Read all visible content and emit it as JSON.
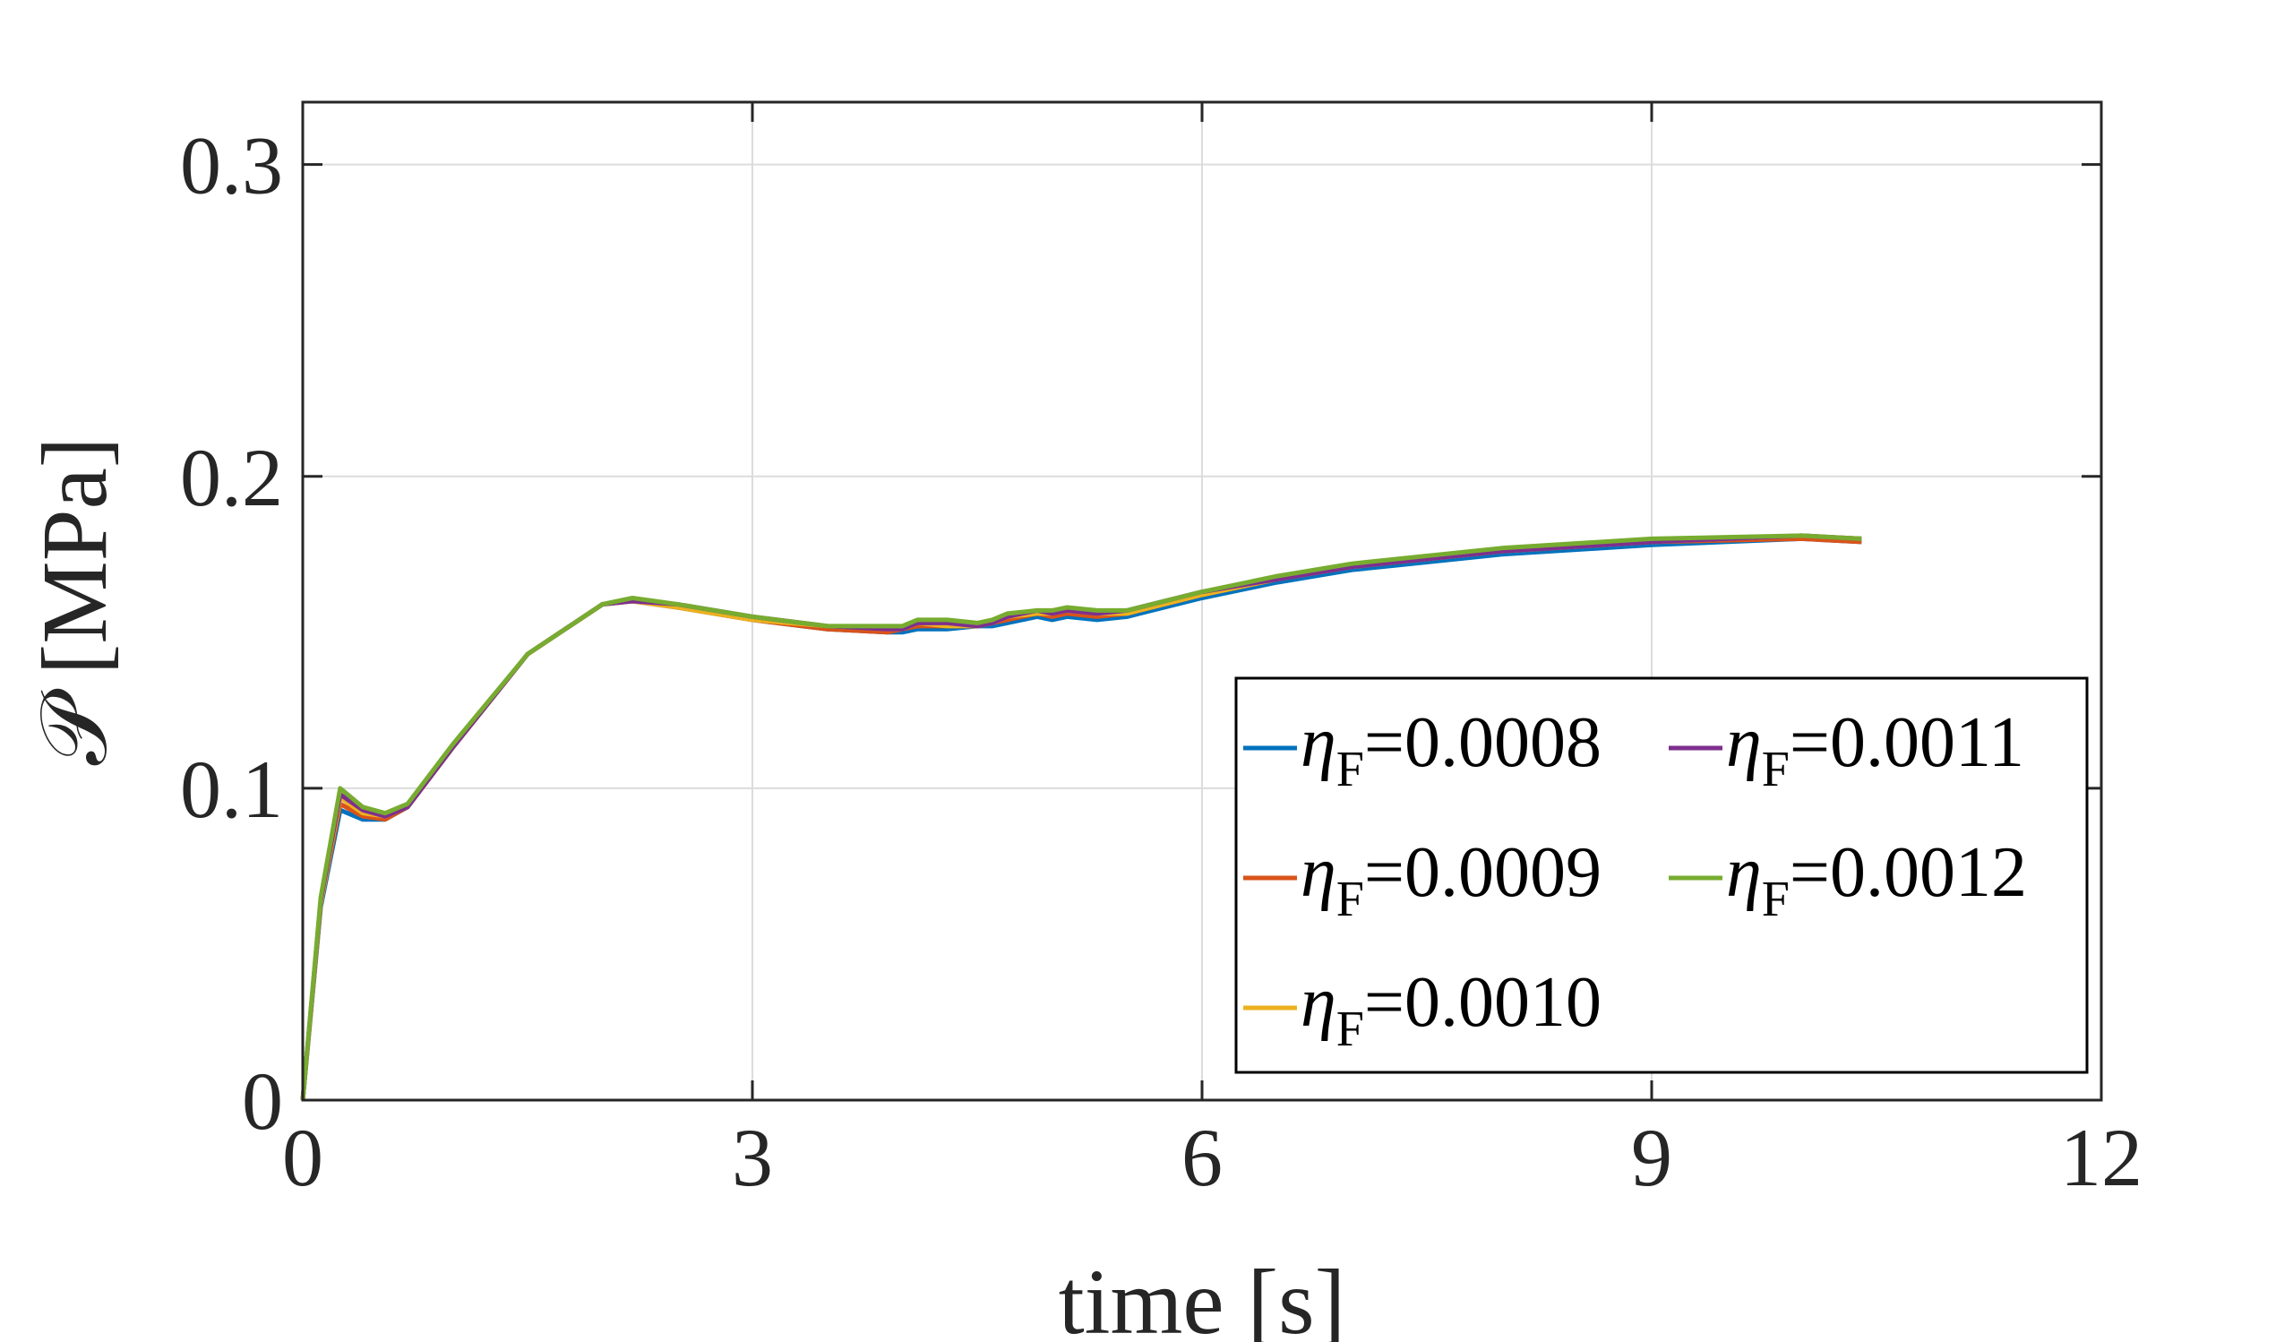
{
  "chart_data": {
    "type": "line",
    "title": "",
    "xlabel": "time [s]",
    "ylabel": "𝒫 [MPa]",
    "xlim": [
      0,
      12
    ],
    "ylim": [
      0,
      0.32
    ],
    "xticks": [
      0,
      3,
      6,
      9,
      12
    ],
    "xtick_labels": [
      "0",
      "3",
      "6",
      "9",
      "12"
    ],
    "yticks": [
      0,
      0.1,
      0.2,
      0.3
    ],
    "ytick_labels": [
      "0",
      "0.1",
      "0.2",
      "0.3"
    ],
    "grid": true,
    "legend_position": "bottom-right",
    "legend_symbol": "η",
    "legend_subscript": "F",
    "series": [
      {
        "name": "=0.0008",
        "color": "#0072BD",
        "x": [
          0,
          0.12,
          0.25,
          0.4,
          0.55,
          0.7,
          1.0,
          1.5,
          2.0,
          2.2,
          2.5,
          3.0,
          3.5,
          3.9,
          4.0,
          4.1,
          4.3,
          4.5,
          4.6,
          4.7,
          4.9,
          5.0,
          5.1,
          5.3,
          5.5,
          6.0,
          6.5,
          7.0,
          8.0,
          9.0,
          10.0,
          10.4
        ],
        "y": [
          0,
          0.062,
          0.093,
          0.09,
          0.09,
          0.094,
          0.113,
          0.143,
          0.159,
          0.16,
          0.158,
          0.154,
          0.151,
          0.15,
          0.15,
          0.151,
          0.151,
          0.152,
          0.152,
          0.153,
          0.155,
          0.154,
          0.155,
          0.154,
          0.155,
          0.161,
          0.166,
          0.17,
          0.175,
          0.178,
          0.18,
          0.179
        ]
      },
      {
        "name": "=0.0009",
        "color": "#D95319",
        "x": [
          0,
          0.12,
          0.25,
          0.4,
          0.55,
          0.7,
          1.0,
          1.5,
          2.0,
          2.2,
          2.5,
          3.0,
          3.5,
          3.9,
          4.0,
          4.1,
          4.3,
          4.5,
          4.6,
          4.7,
          4.9,
          5.0,
          5.1,
          5.3,
          5.5,
          6.0,
          6.5,
          7.0,
          8.0,
          9.0,
          10.0,
          10.4
        ],
        "y": [
          0,
          0.063,
          0.095,
          0.091,
          0.09,
          0.094,
          0.113,
          0.143,
          0.159,
          0.16,
          0.158,
          0.154,
          0.151,
          0.15,
          0.151,
          0.152,
          0.152,
          0.152,
          0.153,
          0.154,
          0.156,
          0.155,
          0.156,
          0.155,
          0.156,
          0.162,
          0.167,
          0.171,
          0.176,
          0.179,
          0.18,
          0.179
        ]
      },
      {
        "name": "=0.0010",
        "color": "#EDB120",
        "x": [
          0,
          0.12,
          0.25,
          0.4,
          0.55,
          0.7,
          1.0,
          1.5,
          2.0,
          2.2,
          2.5,
          3.0,
          3.5,
          3.9,
          4.0,
          4.1,
          4.3,
          4.5,
          4.6,
          4.7,
          4.9,
          5.0,
          5.1,
          5.3,
          5.5,
          6.0,
          6.5,
          7.0,
          8.0,
          9.0,
          10.0,
          10.4
        ],
        "y": [
          0,
          0.063,
          0.097,
          0.092,
          0.091,
          0.094,
          0.113,
          0.143,
          0.159,
          0.16,
          0.158,
          0.154,
          0.152,
          0.151,
          0.151,
          0.153,
          0.152,
          0.152,
          0.153,
          0.155,
          0.156,
          0.156,
          0.157,
          0.156,
          0.156,
          0.162,
          0.167,
          0.171,
          0.176,
          0.179,
          0.181,
          0.18
        ]
      },
      {
        "name": "=0.0011",
        "color": "#7E2F8E",
        "x": [
          0,
          0.12,
          0.25,
          0.4,
          0.55,
          0.7,
          1.0,
          1.5,
          2.0,
          2.2,
          2.5,
          3.0,
          3.5,
          3.9,
          4.0,
          4.1,
          4.3,
          4.5,
          4.6,
          4.7,
          4.9,
          5.0,
          5.1,
          5.3,
          5.5,
          6.0,
          6.5,
          7.0,
          8.0,
          9.0,
          10.0,
          10.4
        ],
        "y": [
          0,
          0.064,
          0.098,
          0.093,
          0.091,
          0.094,
          0.113,
          0.143,
          0.159,
          0.16,
          0.159,
          0.155,
          0.152,
          0.151,
          0.151,
          0.153,
          0.153,
          0.152,
          0.153,
          0.155,
          0.157,
          0.156,
          0.157,
          0.156,
          0.157,
          0.163,
          0.167,
          0.171,
          0.176,
          0.179,
          0.181,
          0.18
        ]
      },
      {
        "name": "=0.0012",
        "color": "#77AC30",
        "x": [
          0,
          0.12,
          0.25,
          0.4,
          0.55,
          0.7,
          1.0,
          1.5,
          2.0,
          2.2,
          2.5,
          3.0,
          3.5,
          3.9,
          4.0,
          4.1,
          4.3,
          4.5,
          4.6,
          4.7,
          4.9,
          5.0,
          5.1,
          5.3,
          5.5,
          6.0,
          6.5,
          7.0,
          8.0,
          9.0,
          10.0,
          10.4
        ],
        "y": [
          0,
          0.065,
          0.1,
          0.094,
          0.092,
          0.095,
          0.114,
          0.143,
          0.159,
          0.161,
          0.159,
          0.155,
          0.152,
          0.152,
          0.152,
          0.154,
          0.154,
          0.153,
          0.154,
          0.156,
          0.157,
          0.157,
          0.158,
          0.157,
          0.157,
          0.163,
          0.168,
          0.172,
          0.177,
          0.18,
          0.181,
          0.18
        ]
      }
    ]
  }
}
